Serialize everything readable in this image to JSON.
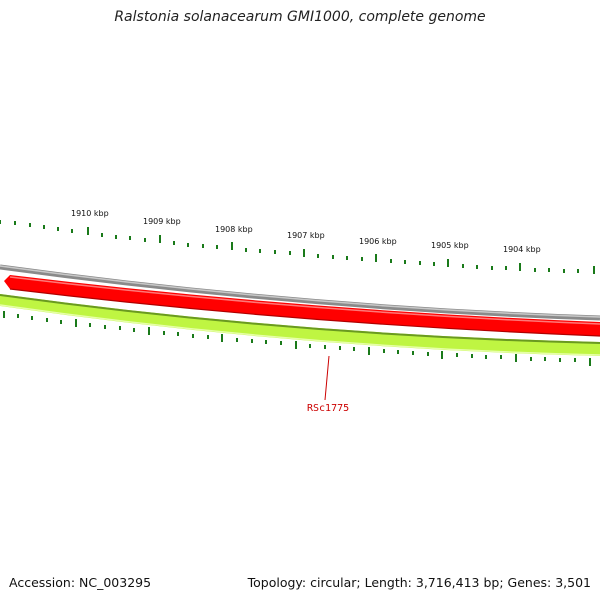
{
  "title": "Ralstonia solanacearum GMI1000, complete genome",
  "accession": "Accession: NC_003295",
  "summary": "Topology: circular; Length: 3,716,413 bp; Genes: 3,501",
  "ruler": {
    "major_ticks": [
      "1910 kbp",
      "1909 kbp",
      "1908 kbp",
      "1907 kbp",
      "1906 kbp",
      "1905 kbp",
      "1904 kbp"
    ]
  },
  "gene_label": "RSc1775",
  "colors": {
    "tick": "#1a7a1a",
    "backbone": "#8a8a8a",
    "forward_gene": "#ff0000",
    "reverse_gene": "#bff542",
    "gene_label": "#cc0000"
  }
}
